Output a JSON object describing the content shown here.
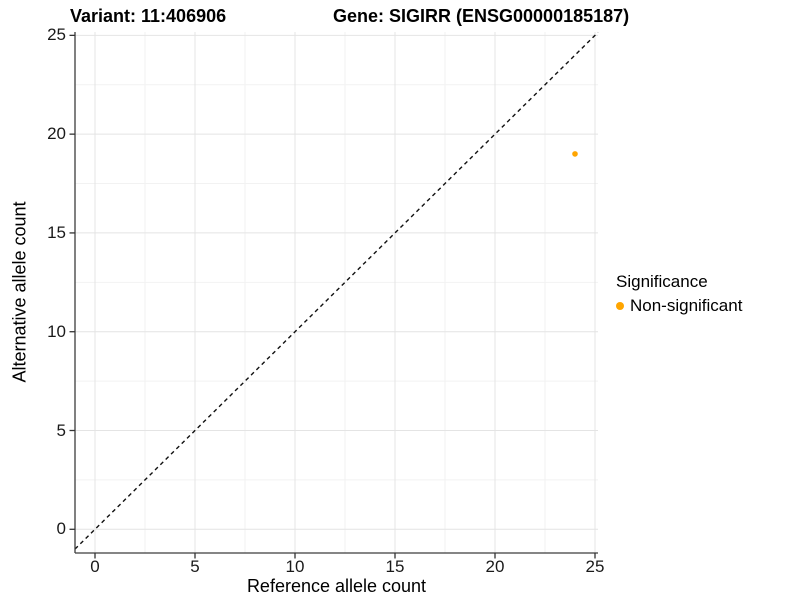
{
  "title": {
    "left": "Variant: 11:406906",
    "right": "Gene: SIGIRR (ENSG00000185187)"
  },
  "axes": {
    "x_label": "Reference allele count",
    "y_label": "Alternative allele count"
  },
  "legend": {
    "title": "Significance",
    "entries": [
      {
        "label": "Non-significant",
        "color": "#FFA500"
      }
    ]
  },
  "colors": {
    "point": "#FFA500",
    "grid_major": "#E4E4E4",
    "grid_minor": "#F2F2F2",
    "axis_line": "#3C3C3C",
    "tick_mark": "#333333",
    "reference_line": "#111111",
    "background": "#FFFFFF"
  },
  "chart_data": {
    "type": "scatter",
    "title": "Variant: 11:406906    Gene: SIGIRR (ENSG00000185187)",
    "xlabel": "Reference allele count",
    "ylabel": "Alternative allele count",
    "xlim": [
      -1.0,
      25.15
    ],
    "ylim": [
      -1.2,
      25.17
    ],
    "x_ticks": [
      0,
      5,
      10,
      15,
      20,
      25
    ],
    "y_ticks": [
      0,
      5,
      10,
      15,
      20,
      25
    ],
    "x_minor_ticks": [
      2.5,
      7.5,
      12.5,
      17.5,
      22.5
    ],
    "y_minor_ticks": [
      2.5,
      7.5,
      12.5,
      17.5,
      22.5
    ],
    "grid": "major+minor",
    "legend_position": "right",
    "series": [
      {
        "name": "Non-significant",
        "color": "#FFA500",
        "points": [
          {
            "x": 24,
            "y": 19
          }
        ]
      }
    ],
    "reference_line": {
      "slope": 1,
      "intercept": 0,
      "style": "dashed"
    }
  }
}
